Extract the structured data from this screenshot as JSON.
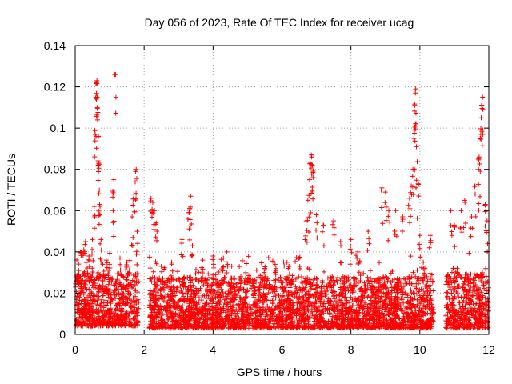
{
  "chart_data": {
    "type": "scatter",
    "title": "Day 056 of 2023, Rate Of TEC Index for receiver ucag",
    "xlabel": "GPS time / hours",
    "ylabel": "ROTI / TECUs",
    "xlim": [
      0,
      12
    ],
    "ylim": [
      0,
      0.14
    ],
    "x_ticks": [
      0,
      2,
      4,
      6,
      8,
      10,
      12
    ],
    "x_tick_labels": [
      "0",
      "2",
      "4",
      "6",
      "8",
      "10",
      "12"
    ],
    "y_ticks": [
      0,
      0.02,
      0.04,
      0.06,
      0.08,
      0.1,
      0.12,
      0.14
    ],
    "y_tick_labels": [
      "0",
      "0.02",
      "0.04",
      "0.06",
      "0.08",
      "0.1",
      "0.12",
      "0.14"
    ],
    "grid": true,
    "marker": "plus",
    "color": "#ff0000",
    "data_gaps_hours": [
      [
        1.85,
        2.15
      ],
      [
        10.4,
        10.75
      ]
    ],
    "series": [
      {
        "name": "ROTI",
        "points": [
          [
            0.05,
            0.026
          ],
          [
            0.1,
            0.031
          ],
          [
            0.15,
            0.04
          ],
          [
            0.25,
            0.041
          ],
          [
            0.3,
            0.045
          ],
          [
            0.4,
            0.038
          ],
          [
            0.5,
            0.046
          ],
          [
            0.55,
            0.062
          ],
          [
            0.58,
            0.097
          ],
          [
            0.6,
            0.115
          ],
          [
            0.62,
            0.122
          ],
          [
            0.63,
            0.123
          ],
          [
            0.64,
            0.11
          ],
          [
            0.65,
            0.104
          ],
          [
            0.67,
            0.082
          ],
          [
            0.68,
            0.083
          ],
          [
            0.7,
            0.07
          ],
          [
            0.72,
            0.062
          ],
          [
            0.75,
            0.046
          ],
          [
            0.8,
            0.034
          ],
          [
            0.9,
            0.036
          ],
          [
            1.0,
            0.034
          ],
          [
            1.1,
            0.06
          ],
          [
            1.12,
            0.075
          ],
          [
            1.17,
            0.126
          ],
          [
            1.3,
            0.037
          ],
          [
            1.5,
            0.035
          ],
          [
            1.65,
            0.057
          ],
          [
            1.7,
            0.068
          ],
          [
            1.75,
            0.079
          ],
          [
            1.77,
            0.08
          ],
          [
            1.8,
            0.05
          ],
          [
            2.2,
            0.066
          ],
          [
            2.25,
            0.064
          ],
          [
            2.3,
            0.06
          ],
          [
            2.35,
            0.054
          ],
          [
            2.5,
            0.033
          ],
          [
            2.8,
            0.035
          ],
          [
            3.1,
            0.046
          ],
          [
            3.3,
            0.059
          ],
          [
            3.32,
            0.061
          ],
          [
            3.35,
            0.067
          ],
          [
            3.4,
            0.043
          ],
          [
            3.7,
            0.036
          ],
          [
            4.0,
            0.038
          ],
          [
            4.3,
            0.037
          ],
          [
            4.4,
            0.04
          ],
          [
            5.0,
            0.027
          ],
          [
            5.5,
            0.032
          ],
          [
            5.8,
            0.034
          ],
          [
            6.2,
            0.033
          ],
          [
            6.5,
            0.037
          ],
          [
            6.7,
            0.055
          ],
          [
            6.75,
            0.065
          ],
          [
            6.8,
            0.075
          ],
          [
            6.82,
            0.083
          ],
          [
            6.85,
            0.087
          ],
          [
            6.88,
            0.082
          ],
          [
            6.9,
            0.076
          ],
          [
            7.0,
            0.058
          ],
          [
            7.2,
            0.053
          ],
          [
            7.5,
            0.055
          ],
          [
            7.7,
            0.045
          ],
          [
            8.0,
            0.046
          ],
          [
            8.2,
            0.04
          ],
          [
            8.5,
            0.05
          ],
          [
            8.9,
            0.071
          ],
          [
            9.0,
            0.069
          ],
          [
            9.1,
            0.06
          ],
          [
            9.3,
            0.06
          ],
          [
            9.5,
            0.057
          ],
          [
            9.7,
            0.066
          ],
          [
            9.75,
            0.072
          ],
          [
            9.8,
            0.08
          ],
          [
            9.83,
            0.099
          ],
          [
            9.85,
            0.111
          ],
          [
            9.87,
            0.117
          ],
          [
            9.88,
            0.119
          ],
          [
            9.9,
            0.091
          ],
          [
            9.95,
            0.073
          ],
          [
            10.0,
            0.048
          ],
          [
            10.1,
            0.035
          ],
          [
            10.3,
            0.048
          ],
          [
            10.9,
            0.06
          ],
          [
            11.0,
            0.053
          ],
          [
            11.2,
            0.06
          ],
          [
            11.3,
            0.065
          ],
          [
            11.5,
            0.057
          ],
          [
            11.6,
            0.072
          ],
          [
            11.7,
            0.08
          ],
          [
            11.72,
            0.086
          ],
          [
            11.75,
            0.095
          ],
          [
            11.78,
            0.105
          ],
          [
            11.8,
            0.111
          ],
          [
            11.82,
            0.115
          ],
          [
            11.9,
            0.063
          ],
          [
            11.95,
            0.055
          ]
        ],
        "density_bands": [
          {
            "x_range": [
              0.0,
              1.85
            ],
            "y_range": [
              0.004,
              0.03
            ]
          },
          {
            "x_range": [
              2.15,
              10.4
            ],
            "y_range": [
              0.003,
              0.028
            ]
          },
          {
            "x_range": [
              10.75,
              12.0
            ],
            "y_range": [
              0.003,
              0.03
            ]
          }
        ]
      }
    ]
  }
}
